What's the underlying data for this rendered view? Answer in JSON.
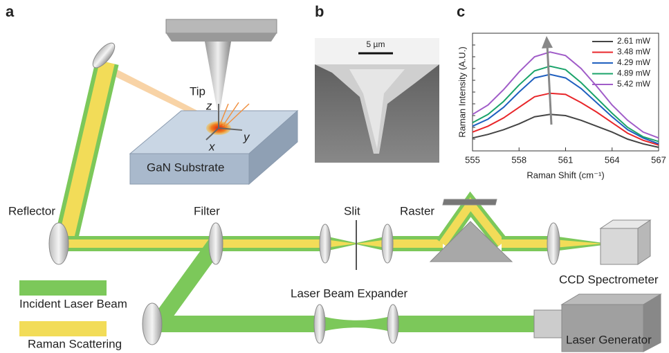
{
  "panels": {
    "a": "a",
    "b": "b",
    "c": "c"
  },
  "labels": {
    "tip": "Tip",
    "z": "z",
    "y": "y",
    "x": "x",
    "substrate": "GaN Substrate",
    "scale_bar": "5 µm",
    "reflector": "Reflector",
    "filter": "Filter",
    "slit": "Slit",
    "raster": "Raster",
    "ccd": "CCD Spectrometer",
    "expander": "Laser Beam Expander",
    "generator": "Laser Generator"
  },
  "legend": {
    "incident": "Incident Laser Beam",
    "raman": "Raman Scattering"
  },
  "chart_data": {
    "type": "line",
    "xlabel": "Raman Shift (cm⁻¹)",
    "ylabel": "Raman Intensity (A.U.)",
    "x": [
      555,
      556,
      557,
      558,
      559,
      560,
      561,
      562,
      563,
      564,
      565,
      566,
      567
    ],
    "xlim": [
      555,
      567
    ],
    "xticks": [
      555,
      558,
      561,
      564,
      567
    ],
    "ylim": [
      0,
      10
    ],
    "legend": "upper right",
    "series": [
      {
        "name": "2.61 mW",
        "color": "#444444",
        "values": [
          1.1,
          1.4,
          1.8,
          2.3,
          2.9,
          3.1,
          3.0,
          2.6,
          2.1,
          1.6,
          1.0,
          0.6,
          0.3
        ]
      },
      {
        "name": "3.48 mW",
        "color": "#e8262a",
        "values": [
          1.6,
          2.1,
          2.8,
          3.7,
          4.6,
          4.9,
          4.8,
          4.1,
          3.3,
          2.4,
          1.5,
          0.9,
          0.5
        ]
      },
      {
        "name": "4.29 mW",
        "color": "#1f5fbf",
        "values": [
          2.1,
          2.7,
          3.7,
          5.0,
          6.2,
          6.5,
          6.2,
          5.3,
          4.1,
          2.9,
          1.8,
          1.1,
          0.6
        ]
      },
      {
        "name": "4.89 mW",
        "color": "#1aa36a",
        "values": [
          2.4,
          3.1,
          4.2,
          5.6,
          6.8,
          7.2,
          6.9,
          5.8,
          4.5,
          3.2,
          2.0,
          1.2,
          0.8
        ]
      },
      {
        "name": "5.42 mW",
        "color": "#a05cc8",
        "values": [
          3.1,
          3.9,
          5.2,
          6.7,
          8.0,
          8.4,
          8.1,
          7.0,
          5.5,
          3.9,
          2.6,
          1.6,
          1.1
        ]
      }
    ]
  }
}
